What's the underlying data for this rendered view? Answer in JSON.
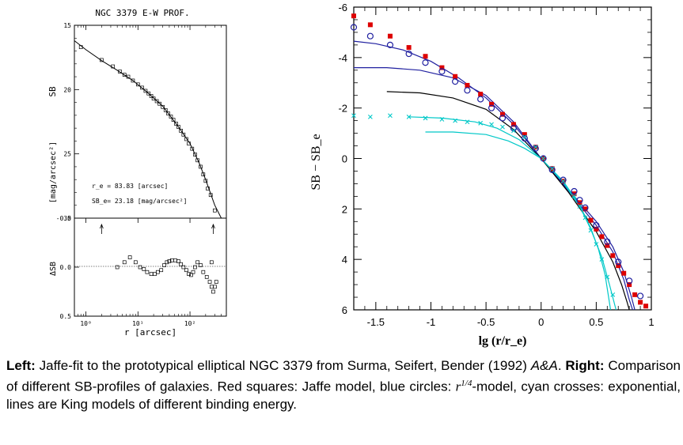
{
  "chart_data": [
    {
      "type": "scatter",
      "title": "NGC 3379   E-W PROF.",
      "top_panel": {
        "ylabel": "SB",
        "ylabel2": "[mag/arcsec²]",
        "xscale": "log",
        "xlim": [
          0.6,
          500
        ],
        "ylim": [
          30,
          15
        ],
        "yticks": [
          "15",
          "20",
          "25",
          "30"
        ],
        "annotation_re": "r_e  =  83.83 [arcsec]",
        "annotation_sbe": "SB_e=  23.18 [mag/arcsec²]",
        "points": [
          [
            0.8,
            16.7
          ],
          [
            2.0,
            17.7
          ],
          [
            3.3,
            18.2
          ],
          [
            4.5,
            18.6
          ],
          [
            5.5,
            18.85
          ],
          [
            6.5,
            19.0
          ],
          [
            8,
            19.3
          ],
          [
            10,
            19.6
          ],
          [
            12,
            19.85
          ],
          [
            14,
            20.1
          ],
          [
            16,
            20.3
          ],
          [
            18,
            20.5
          ],
          [
            20,
            20.7
          ],
          [
            23,
            20.9
          ],
          [
            26,
            21.1
          ],
          [
            30,
            21.35
          ],
          [
            34,
            21.6
          ],
          [
            38,
            21.85
          ],
          [
            43,
            22.1
          ],
          [
            48,
            22.35
          ],
          [
            54,
            22.65
          ],
          [
            60,
            22.9
          ],
          [
            67,
            23.2
          ],
          [
            75,
            23.5
          ],
          [
            85,
            23.85
          ],
          [
            95,
            24.2
          ],
          [
            110,
            24.6
          ],
          [
            125,
            25.05
          ],
          [
            140,
            25.5
          ],
          [
            160,
            26.0
          ],
          [
            180,
            26.6
          ],
          [
            200,
            27.1
          ],
          [
            220,
            27.7
          ],
          [
            250,
            28.2
          ],
          [
            300,
            29.4
          ]
        ],
        "fit_curve": [
          [
            0.6,
            16.2
          ],
          [
            1,
            16.9
          ],
          [
            2,
            17.75
          ],
          [
            4,
            18.5
          ],
          [
            8,
            19.3
          ],
          [
            15,
            20.2
          ],
          [
            30,
            21.3
          ],
          [
            60,
            22.9
          ],
          [
            100,
            24.2
          ],
          [
            150,
            25.7
          ],
          [
            200,
            27.0
          ],
          [
            300,
            29.0
          ],
          [
            400,
            30.0
          ]
        ]
      },
      "bottom_panel": {
        "ylabel": "ΔSB",
        "ylim": [
          0.5,
          -0.5
        ],
        "yticks": [
          "-0.5",
          "0.0",
          "0.5"
        ],
        "xlabel": "r [arcsec]",
        "xticks": [
          "10⁰",
          "10¹",
          "10²"
        ],
        "arrow_markers_x": [
          2.0,
          280
        ],
        "points": [
          [
            4,
            0.0
          ],
          [
            5.5,
            -0.05
          ],
          [
            7,
            -0.1
          ],
          [
            9,
            -0.05
          ],
          [
            11,
            0.0
          ],
          [
            13,
            0.02
          ],
          [
            15,
            0.05
          ],
          [
            18,
            0.07
          ],
          [
            21,
            0.07
          ],
          [
            24,
            0.05
          ],
          [
            28,
            0.03
          ],
          [
            32,
            -0.02
          ],
          [
            36,
            -0.05
          ],
          [
            40,
            -0.06
          ],
          [
            45,
            -0.07
          ],
          [
            52,
            -0.07
          ],
          [
            60,
            -0.06
          ],
          [
            67,
            -0.03
          ],
          [
            75,
            0.0
          ],
          [
            85,
            0.03
          ],
          [
            95,
            0.07
          ],
          [
            105,
            0.08
          ],
          [
            115,
            0.05
          ],
          [
            125,
            0.0
          ],
          [
            140,
            -0.05
          ],
          [
            160,
            -0.02
          ],
          [
            180,
            0.05
          ],
          [
            210,
            0.1
          ],
          [
            240,
            0.15
          ],
          [
            260,
            0.2
          ],
          [
            280,
            0.25
          ],
          [
            300,
            0.2
          ],
          [
            320,
            0.15
          ],
          [
            260,
            -0.05
          ]
        ]
      }
    },
    {
      "type": "line",
      "xlabel": "lg (r/r_e)",
      "ylabel": "SB − SB_e",
      "xlim": [
        -1.7,
        1.0
      ],
      "ylim": [
        6,
        -6
      ],
      "xticks": [
        "-1.5",
        "-1",
        "-0.5",
        "0",
        "0.5",
        "1"
      ],
      "yticks": [
        "-6",
        "-4",
        "-2",
        "0",
        "2",
        "4",
        "6"
      ],
      "series": [
        {
          "color": "#dd0000",
          "marker": "square",
          "points": [
            [
              -1.7,
              -5.65
            ],
            [
              -1.55,
              -5.3
            ],
            [
              -1.37,
              -4.85
            ],
            [
              -1.2,
              -4.4
            ],
            [
              -1.05,
              -4.05
            ],
            [
              -0.9,
              -3.6
            ],
            [
              -0.78,
              -3.25
            ],
            [
              -0.67,
              -2.9
            ],
            [
              -0.55,
              -2.55
            ],
            [
              -0.45,
              -2.15
            ],
            [
              -0.35,
              -1.75
            ],
            [
              -0.25,
              -1.35
            ],
            [
              -0.15,
              -0.95
            ],
            [
              -0.05,
              -0.45
            ],
            [
              0.02,
              0.0
            ],
            [
              0.1,
              0.4
            ],
            [
              0.2,
              0.9
            ],
            [
              0.3,
              1.4
            ],
            [
              0.35,
              1.75
            ],
            [
              0.4,
              2.0
            ],
            [
              0.45,
              2.45
            ],
            [
              0.5,
              2.8
            ],
            [
              0.55,
              3.1
            ],
            [
              0.6,
              3.45
            ],
            [
              0.65,
              3.85
            ],
            [
              0.7,
              4.25
            ],
            [
              0.75,
              4.55
            ],
            [
              0.8,
              5.0
            ],
            [
              0.85,
              5.4
            ],
            [
              0.9,
              5.7
            ],
            [
              0.95,
              5.85
            ]
          ]
        },
        {
          "color": "#2020a0",
          "marker": "circle",
          "points": [
            [
              -1.7,
              -5.2
            ],
            [
              -1.55,
              -4.85
            ],
            [
              -1.37,
              -4.5
            ],
            [
              -1.2,
              -4.15
            ],
            [
              -1.05,
              -3.8
            ],
            [
              -0.9,
              -3.45
            ],
            [
              -0.78,
              -3.05
            ],
            [
              -0.67,
              -2.7
            ],
            [
              -0.55,
              -2.35
            ],
            [
              -0.45,
              -2.0
            ],
            [
              -0.35,
              -1.6
            ],
            [
              -0.25,
              -1.2
            ],
            [
              -0.15,
              -0.8
            ],
            [
              -0.05,
              -0.4
            ],
            [
              0.02,
              0.0
            ],
            [
              0.1,
              0.45
            ],
            [
              0.2,
              0.85
            ],
            [
              0.3,
              1.3
            ],
            [
              0.35,
              1.65
            ],
            [
              0.4,
              1.95
            ],
            [
              0.5,
              2.65
            ],
            [
              0.6,
              3.3
            ],
            [
              0.7,
              4.1
            ],
            [
              0.8,
              4.85
            ],
            [
              0.9,
              5.45
            ]
          ]
        },
        {
          "color": "#00c8c8",
          "marker": "cross",
          "points": [
            [
              -1.7,
              -1.7
            ],
            [
              -1.55,
              -1.65
            ],
            [
              -1.37,
              -1.7
            ],
            [
              -1.2,
              -1.65
            ],
            [
              -1.05,
              -1.6
            ],
            [
              -0.9,
              -1.55
            ],
            [
              -0.78,
              -1.5
            ],
            [
              -0.67,
              -1.45
            ],
            [
              -0.55,
              -1.4
            ],
            [
              -0.45,
              -1.35
            ],
            [
              -0.35,
              -1.25
            ],
            [
              -0.25,
              -1.1
            ],
            [
              -0.15,
              -0.85
            ],
            [
              -0.05,
              -0.45
            ],
            [
              0.02,
              0.0
            ],
            [
              0.1,
              0.4
            ],
            [
              0.2,
              0.9
            ],
            [
              0.3,
              1.5
            ],
            [
              0.35,
              1.9
            ],
            [
              0.4,
              2.35
            ],
            [
              0.45,
              2.85
            ],
            [
              0.5,
              3.4
            ],
            [
              0.55,
              4.0
            ],
            [
              0.6,
              4.7
            ],
            [
              0.65,
              5.4
            ]
          ]
        },
        {
          "color": "#2020a0",
          "marker": "none",
          "points": [
            [
              -1.7,
              -4.65
            ],
            [
              -1.5,
              -4.55
            ],
            [
              -1.25,
              -4.3
            ],
            [
              -1.0,
              -3.85
            ],
            [
              -0.75,
              -3.2
            ],
            [
              -0.5,
              -2.4
            ],
            [
              -0.25,
              -1.35
            ],
            [
              0.0,
              0.0
            ],
            [
              0.25,
              1.25
            ],
            [
              0.5,
              2.5
            ],
            [
              0.65,
              3.5
            ],
            [
              0.75,
              4.5
            ],
            [
              0.82,
              5.5
            ],
            [
              0.85,
              6.0
            ]
          ]
        },
        {
          "color": "#2020a0",
          "marker": "none",
          "points": [
            [
              -1.7,
              -3.6
            ],
            [
              -1.4,
              -3.6
            ],
            [
              -1.1,
              -3.5
            ],
            [
              -0.8,
              -3.2
            ],
            [
              -0.5,
              -2.5
            ],
            [
              -0.25,
              -1.45
            ],
            [
              0.0,
              0.0
            ],
            [
              0.25,
              1.3
            ],
            [
              0.5,
              2.65
            ],
            [
              0.65,
              3.7
            ],
            [
              0.75,
              4.8
            ],
            [
              0.8,
              5.6
            ],
            [
              0.83,
              6.0
            ]
          ]
        },
        {
          "color": "#000000",
          "marker": "none",
          "points": [
            [
              -1.4,
              -2.65
            ],
            [
              -1.1,
              -2.6
            ],
            [
              -0.8,
              -2.4
            ],
            [
              -0.5,
              -1.95
            ],
            [
              -0.25,
              -1.15
            ],
            [
              0.0,
              0.0
            ],
            [
              0.25,
              1.35
            ],
            [
              0.5,
              2.9
            ],
            [
              0.65,
              4.1
            ],
            [
              0.73,
              5.0
            ],
            [
              0.78,
              5.7
            ],
            [
              0.8,
              6.0
            ]
          ]
        },
        {
          "color": "#00c8c8",
          "marker": "none",
          "points": [
            [
              -1.2,
              -1.65
            ],
            [
              -0.9,
              -1.6
            ],
            [
              -0.6,
              -1.45
            ],
            [
              -0.4,
              -1.2
            ],
            [
              -0.2,
              -0.75
            ],
            [
              0.0,
              0.0
            ],
            [
              0.2,
              0.95
            ],
            [
              0.35,
              1.9
            ],
            [
              0.45,
              2.8
            ],
            [
              0.55,
              3.9
            ],
            [
              0.62,
              5.0
            ],
            [
              0.68,
              6.0
            ]
          ]
        },
        {
          "color": "#00c8c8",
          "marker": "none",
          "points": [
            [
              -1.05,
              -1.05
            ],
            [
              -0.8,
              -1.05
            ],
            [
              -0.5,
              -0.95
            ],
            [
              -0.3,
              -0.7
            ],
            [
              -0.15,
              -0.4
            ],
            [
              0.0,
              0.0
            ],
            [
              0.2,
              0.9
            ],
            [
              0.35,
              1.85
            ],
            [
              0.45,
              2.75
            ],
            [
              0.52,
              3.6
            ],
            [
              0.58,
              4.6
            ],
            [
              0.63,
              6.0
            ]
          ]
        }
      ]
    }
  ],
  "caption": {
    "left_label": "Left:",
    "left_text": " Jaffe-fit to the prototypical elliptical NGC 3379 from Surma, Seifert, Bender (1992) ",
    "journal": "A&A",
    "journal_dot": ". ",
    "right_label": "Right:",
    "right_text1": " Comparison of different SB-profiles of galaxies. Red squares: Jaffe model, blue circles: ",
    "r14": "r",
    "r14_exp": "1/4",
    "right_text2": "-model, cyan crosses: exponential, lines are King models of different binding energy."
  }
}
